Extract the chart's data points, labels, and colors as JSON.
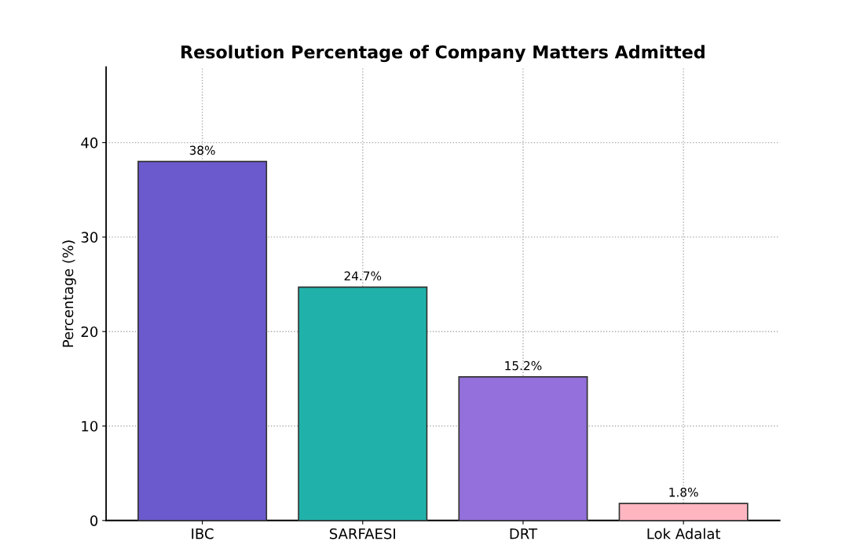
{
  "chart_data": {
    "type": "bar",
    "title": "Resolution Percentage of Company Matters Admitted",
    "ylabel": "Percentage (%)",
    "categories": [
      "IBC",
      "SARFAESI",
      "DRT",
      "Lok Adalat"
    ],
    "values": [
      38,
      24.7,
      15.2,
      1.8
    ],
    "value_labels": [
      "38%",
      "24.7%",
      "15.2%",
      "1.8%"
    ],
    "colors": [
      "#6a5acd",
      "#20b2aa",
      "#9370db",
      "#ffb6c1"
    ],
    "ylim": [
      0,
      48
    ],
    "yticks": [
      0,
      10,
      20,
      30,
      40
    ],
    "grid": true,
    "legend": false
  }
}
